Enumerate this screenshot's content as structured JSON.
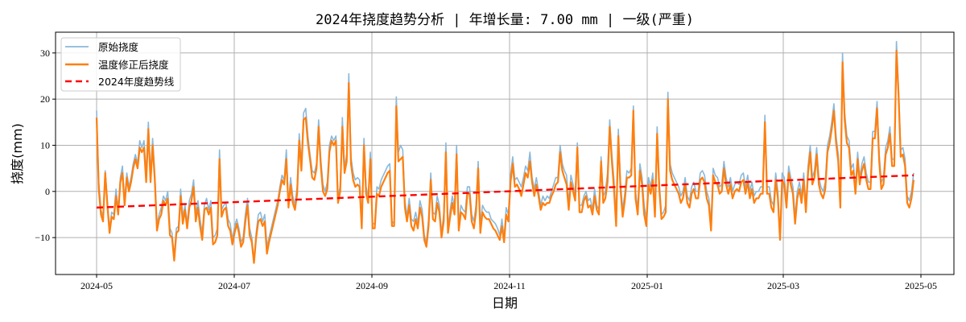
{
  "chart_data": {
    "type": "line",
    "title": "2024年挠度趋势分析 | 年增长量: 7.00 mm | 一级(严重)",
    "xlabel": "日期",
    "ylabel": "挠度(mm)",
    "ylim": [
      -18,
      34.5
    ],
    "xlim": [
      "2024-04-10",
      "2025-05-23"
    ],
    "grid": true,
    "legend_position": "upper left",
    "x_ticks": [
      "2024-05",
      "2024-07",
      "2024-09",
      "2024-11",
      "2025-01",
      "2025-03",
      "2025-05"
    ],
    "y_ticks": [
      -10,
      0,
      10,
      20,
      30
    ],
    "x_start": "2024-05-01",
    "x_end": "2025-04-30",
    "series": [
      {
        "name": "原始挠度",
        "color": "#8ab9db",
        "style": "solid",
        "values": [
          17.5,
          2,
          -4,
          -5.5,
          4.5,
          -2,
          -8,
          -4.5,
          -5,
          0.5,
          -4,
          3,
          5.5,
          -2,
          4,
          1,
          3,
          6,
          8,
          6,
          11,
          9.5,
          11,
          4,
          15,
          4,
          11.5,
          4,
          -7,
          -5,
          -3.5,
          -1,
          -2,
          0,
          -8,
          -9,
          -14,
          -8,
          -7.5,
          0.5,
          -5.5,
          -3,
          -7,
          -2,
          -0.5,
          2.5,
          -5,
          -2,
          -6,
          -9,
          -3,
          -1.5,
          -4,
          -2,
          -10,
          -9.5,
          -8,
          9,
          -4,
          -3,
          -2.5,
          -6,
          -7,
          -10.5,
          -7.5,
          -6,
          -8,
          -11,
          -10,
          -5,
          -1.5,
          -8,
          -10,
          -15,
          -9,
          -5,
          -4.5,
          -6.5,
          -5,
          -12,
          -10,
          -8,
          -6,
          -4,
          -2,
          1,
          3.5,
          2.5,
          9,
          -3,
          3,
          -1,
          -3,
          1,
          12.5,
          6,
          17,
          18,
          12,
          8,
          4.5,
          4,
          6,
          15.5,
          7,
          1.5,
          0,
          2,
          10,
          12,
          11,
          12,
          -1,
          1,
          16,
          5,
          8,
          25.5,
          7.5,
          4,
          2.5,
          3,
          2.5,
          -7,
          11.5,
          1,
          -1,
          8.5,
          -7,
          -7,
          1,
          0.5,
          2.5,
          3.5,
          4.5,
          5.5,
          6,
          -6.5,
          -7,
          20.5,
          8.5,
          10,
          9,
          -2,
          -5.5,
          -1.5,
          -6,
          -6.5,
          -4.5,
          -7,
          -2,
          -4,
          -9.5,
          -11,
          -6,
          4,
          -4.5,
          -5,
          -1,
          -3,
          -9,
          -5,
          10.5,
          -8,
          -4,
          -1,
          -3.5,
          10,
          -7.5,
          -3,
          -4,
          -4.5,
          1,
          1,
          -5,
          -6.5,
          -3,
          6.5,
          -7,
          -3,
          -4,
          -4.5,
          -4.5,
          -6,
          -6.5,
          -7,
          -8,
          -9.5,
          -6,
          -10,
          -3.5,
          -5,
          3.5,
          7.5,
          2.5,
          3,
          2,
          1,
          3,
          5.5,
          4.5,
          8.5,
          3,
          0.5,
          3,
          0,
          -3,
          -1,
          -2,
          -1,
          -1.5,
          0,
          1.5,
          3,
          3,
          10,
          6,
          4.5,
          3.5,
          -2.5,
          3.5,
          1.5,
          -1,
          10.5,
          -3,
          -3,
          -1,
          0,
          -2,
          -1.5,
          -4,
          0.5,
          -3,
          -4,
          7.5,
          -1,
          0,
          4,
          15.5,
          8,
          2.5,
          -6,
          13.5,
          2,
          -4,
          -0.5,
          4.5,
          4,
          5,
          18.5,
          0,
          -4,
          6,
          3,
          -3,
          -6,
          3,
          1,
          4,
          -4,
          14,
          2,
          -5,
          -4.5,
          -3,
          21.5,
          6,
          4,
          3,
          2,
          1,
          -1,
          0,
          3,
          -1,
          -2,
          1,
          2,
          0,
          0,
          4,
          4.5,
          3.5,
          0,
          -1.5,
          -7,
          5,
          3.5,
          3,
          1,
          1.5,
          6.5,
          3,
          1,
          3,
          0,
          1.5,
          2,
          1.5,
          3.5,
          4,
          1,
          3.5,
          0,
          2,
          -1,
          0,
          0,
          1,
          1,
          16.5,
          1,
          1,
          -2,
          -3,
          4,
          0,
          -9.5,
          4,
          3,
          -2,
          5.5,
          3,
          1,
          -5.5,
          0,
          2,
          -1,
          4,
          -3,
          5.5,
          10,
          3,
          4.5,
          9.5,
          3,
          1,
          0,
          2,
          10,
          12,
          15,
          19,
          12,
          8,
          -2,
          30,
          17,
          12,
          11,
          5,
          6,
          1,
          8.5,
          3,
          6,
          7.5,
          4,
          2,
          2,
          13,
          13,
          19.5,
          8,
          2,
          3,
          9.5,
          11,
          14,
          7,
          7,
          32.5,
          22,
          9,
          9.5,
          7,
          -1,
          -2,
          0,
          4
        ]
      },
      {
        "name": "温度修正后挠度",
        "color": "#ff7f0e",
        "style": "solid",
        "values": [
          16,
          0.5,
          -5,
          -6.5,
          4,
          -3,
          -9,
          -5.5,
          -6,
          -1,
          -5,
          2,
          4,
          -3,
          3,
          0,
          2,
          5,
          7,
          5,
          9.5,
          8.5,
          9.5,
          2,
          13.5,
          2,
          10,
          2.5,
          -8.5,
          -6,
          -5,
          -2,
          -3,
          -1.5,
          -9.5,
          -10,
          -15,
          -9,
          -8.5,
          -1,
          -7,
          -4,
          -8,
          -3.5,
          -2,
          1,
          -6.5,
          -3.5,
          -7.5,
          -10.5,
          -4,
          -3.5,
          -5,
          -3.5,
          -11.5,
          -11,
          -9.5,
          7,
          -5.5,
          -4,
          -3.5,
          -7.5,
          -8.5,
          -11.5,
          -9,
          -7,
          -9,
          -12,
          -11,
          -6.5,
          -3,
          -9.5,
          -11,
          -15.5,
          -10,
          -6.5,
          -6,
          -7.5,
          -6.5,
          -13.5,
          -11,
          -9,
          -7,
          -5,
          -3,
          0,
          2.5,
          1.5,
          7,
          -3.5,
          1.5,
          -2.5,
          -4,
          -0.5,
          11,
          4.5,
          15.5,
          16,
          10.5,
          7,
          3,
          2.5,
          5,
          14,
          5.5,
          0,
          -1,
          0.5,
          8.5,
          11,
          10,
          11,
          -2.5,
          0,
          14,
          4,
          6.5,
          23.5,
          6,
          2.5,
          1,
          1.5,
          1,
          -8,
          10,
          -0.5,
          -2.5,
          7,
          -8,
          -8,
          -0.5,
          -1,
          1,
          2,
          3,
          4,
          4.5,
          -7.5,
          -7.5,
          18.5,
          6.5,
          7,
          7.5,
          -3.5,
          -6.5,
          -3,
          -7.5,
          -8.5,
          -6,
          -8,
          -3.5,
          -5.5,
          -10.5,
          -12,
          -7.5,
          2.5,
          -6,
          -6.5,
          -2.5,
          -4.5,
          -10,
          -6.5,
          8.5,
          -9,
          -5.5,
          -2.5,
          -5,
          8,
          -8.5,
          -4.5,
          -5,
          -6,
          -0.5,
          -0.5,
          -6.5,
          -8,
          -4.5,
          5,
          -9,
          -4.5,
          -5.5,
          -6,
          -6,
          -7,
          -8,
          -8.5,
          -9.5,
          -10.5,
          -7.5,
          -11,
          -5,
          -6.5,
          2,
          6,
          1,
          1.5,
          0.5,
          -1,
          1.5,
          4,
          3,
          6.5,
          2,
          -1,
          1.5,
          -1,
          -4,
          -2.5,
          -3,
          -2.5,
          -2.5,
          -1,
          0,
          1.5,
          2,
          8.5,
          4.5,
          3,
          1.5,
          -4,
          2,
          0,
          -2,
          9.5,
          -4.5,
          -4.5,
          -2,
          -1,
          -3.5,
          -3,
          -5,
          -1,
          -4,
          -5,
          6.5,
          -2.5,
          -1.5,
          2,
          14,
          6.5,
          0.5,
          -7.5,
          12,
          0.5,
          -5.5,
          -2,
          3,
          3,
          3.5,
          17.5,
          -1.5,
          -5,
          4.5,
          1.5,
          -5,
          -7.5,
          1.5,
          -0.5,
          2.5,
          -5.5,
          12.5,
          0.5,
          -6,
          -5.5,
          -4.5,
          20,
          4.5,
          2.5,
          1.5,
          0.5,
          -0.5,
          -2.5,
          -1.5,
          1.5,
          -2.5,
          -3.5,
          -0.5,
          0.5,
          -1.5,
          -1.5,
          2.5,
          3,
          2,
          -1.5,
          -3,
          -8.5,
          3.5,
          2,
          1.5,
          -0.5,
          0,
          5,
          1.5,
          -0.5,
          1.5,
          -1.5,
          0,
          0.5,
          0,
          2,
          2.5,
          -0.5,
          2,
          -1.5,
          0.5,
          -2.5,
          -1.5,
          -1.5,
          -0.5,
          -0.5,
          15,
          -0.5,
          -0.5,
          -3.5,
          -4.5,
          2.5,
          -1.5,
          -10.5,
          2.5,
          1.5,
          -3.5,
          4,
          1.5,
          -0.5,
          -7,
          -1.5,
          0.5,
          -2.5,
          2.5,
          -4.5,
          4,
          8.5,
          1.5,
          3,
          8,
          1.5,
          -0.5,
          -1.5,
          0.5,
          8.5,
          10.5,
          13.5,
          17.5,
          10.5,
          6.5,
          -3.5,
          28,
          15.5,
          10.5,
          9.5,
          3.5,
          4.5,
          -0.5,
          7,
          1.5,
          4.5,
          6,
          2.5,
          0.5,
          0.5,
          11.5,
          11.5,
          18,
          6.5,
          0.5,
          1.5,
          8,
          9.5,
          12.5,
          5.5,
          5.5,
          30.5,
          20.5,
          7.5,
          8,
          5.5,
          -2.5,
          -3.5,
          -1.5,
          2.5
        ]
      },
      {
        "name": "2024年度趋势线",
        "color": "#ff0000",
        "style": "dashed",
        "values": [
          -3.5,
          3.5
        ]
      }
    ]
  },
  "legend": {
    "items": [
      {
        "label": "原始挠度",
        "color": "#8ab9db",
        "style": "solid"
      },
      {
        "label": "温度修正后挠度",
        "color": "#ff7f0e",
        "style": "solid"
      },
      {
        "label": "2024年度趋势线",
        "color": "#ff0000",
        "style": "dashed"
      }
    ]
  },
  "axes": {
    "x_tick_labels": [
      "2024-05",
      "2024-07",
      "2024-09",
      "2024-11",
      "2025-01",
      "2025-03",
      "2025-05"
    ],
    "y_tick_labels": [
      "−10",
      "0",
      "10",
      "20",
      "30"
    ]
  }
}
